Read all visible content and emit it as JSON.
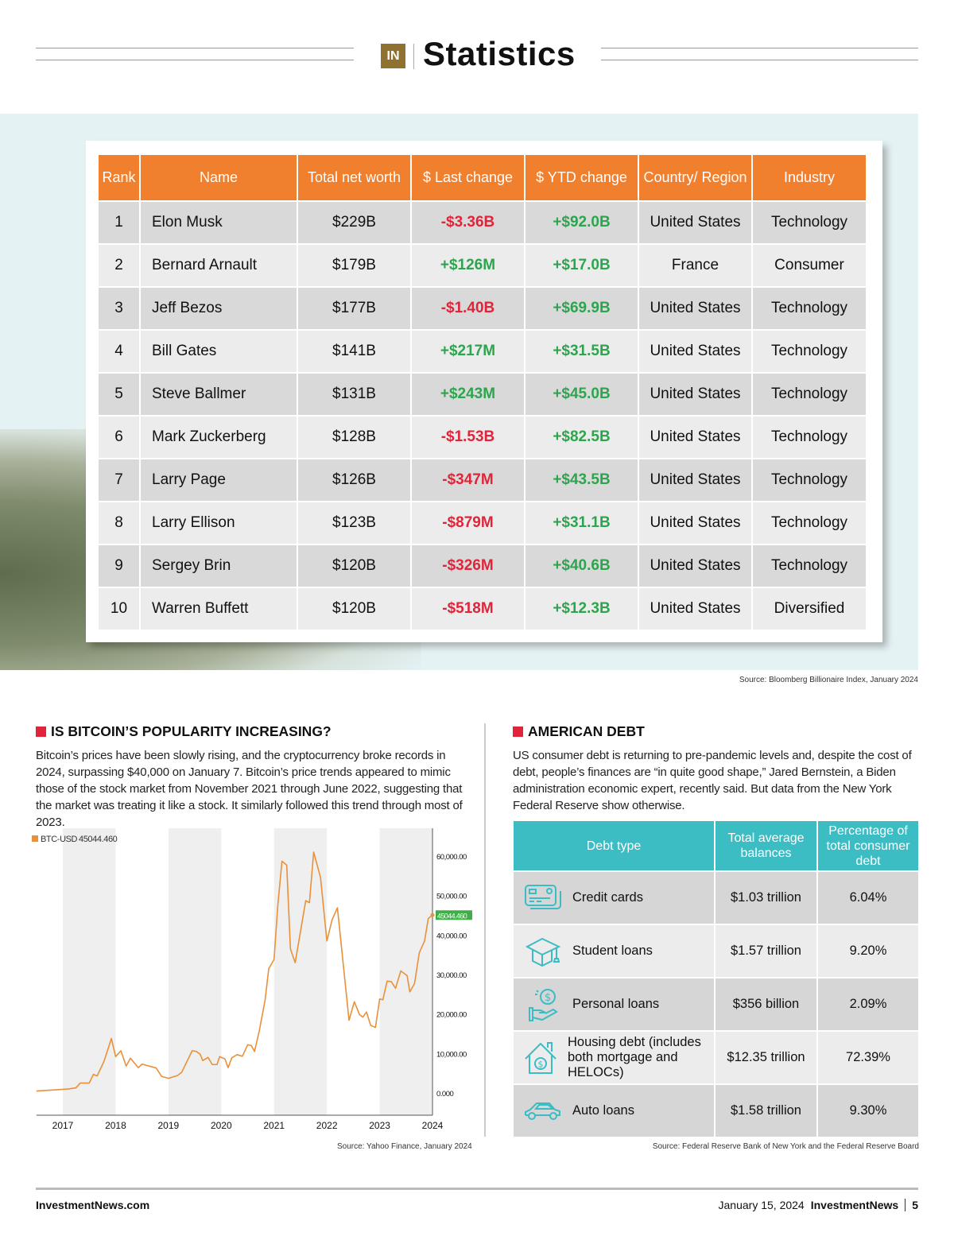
{
  "header": {
    "logo": "IN",
    "title": "Statistics"
  },
  "billionaires": {
    "columns": [
      "Rank",
      "Name",
      "Total net worth",
      "$ Last change",
      "$ YTD change",
      "Country/ Region",
      "Industry"
    ],
    "rows": [
      {
        "rank": "1",
        "name": "Elon Musk",
        "worth": "$229B",
        "last": "-$3.36B",
        "ytd": "+$92.0B",
        "country": "United States",
        "industry": "Technology"
      },
      {
        "rank": "2",
        "name": "Bernard Arnault",
        "worth": "$179B",
        "last": "+$126M",
        "ytd": "+$17.0B",
        "country": "France",
        "industry": "Consumer"
      },
      {
        "rank": "3",
        "name": "Jeff Bezos",
        "worth": "$177B",
        "last": "-$1.40B",
        "ytd": "+$69.9B",
        "country": "United States",
        "industry": "Technology"
      },
      {
        "rank": "4",
        "name": "Bill Gates",
        "worth": "$141B",
        "last": "+$217M",
        "ytd": "+$31.5B",
        "country": "United States",
        "industry": "Technology"
      },
      {
        "rank": "5",
        "name": "Steve Ballmer",
        "worth": "$131B",
        "last": "+$243M",
        "ytd": "+$45.0B",
        "country": "United States",
        "industry": "Technology"
      },
      {
        "rank": "6",
        "name": "Mark Zuckerberg",
        "worth": "$128B",
        "last": "-$1.53B",
        "ytd": "+$82.5B",
        "country": "United States",
        "industry": "Technology"
      },
      {
        "rank": "7",
        "name": "Larry Page",
        "worth": "$126B",
        "last": "-$347M",
        "ytd": "+$43.5B",
        "country": "United States",
        "industry": "Technology"
      },
      {
        "rank": "8",
        "name": "Larry Ellison",
        "worth": "$123B",
        "last": "-$879M",
        "ytd": "+$31.1B",
        "country": "United States",
        "industry": "Technology"
      },
      {
        "rank": "9",
        "name": "Sergey Brin",
        "worth": "$120B",
        "last": "-$326M",
        "ytd": "+$40.6B",
        "country": "United States",
        "industry": "Technology"
      },
      {
        "rank": "10",
        "name": "Warren Buffett",
        "worth": "$120B",
        "last": "-$518M",
        "ytd": "+$12.3B",
        "country": "United States",
        "industry": "Diversified"
      }
    ],
    "source": "Source: Bloomberg Billionaire Index, January 2024"
  },
  "bitcoin": {
    "heading": "IS BITCOIN’S POPULARITY INCREASING?",
    "body": "Bitcoin’s prices have been slowly rising, and the cryptocurrency broke records in 2024, surpassing $40,000 on January 7. Bitcoin’s price trends appeared to mimic those of the stock market from November 2021 through June 2022, suggesting that the market was treating it like a stock. It similarly followed this trend through most of 2023.",
    "source": "Source: Yahoo Finance, January 2024"
  },
  "chart_data": {
    "type": "line",
    "title": "",
    "legend": {
      "label": "BTC-USD",
      "value": "45044.460",
      "placement": "top-left"
    },
    "last_value_label": "45044.460",
    "xlabel": "",
    "ylabel": "",
    "x_ticks": [
      "2017",
      "2018",
      "2019",
      "2020",
      "2021",
      "2022",
      "2023",
      "2024"
    ],
    "y_ticks": [
      "0.000",
      "10,000.00",
      "20,000.00",
      "30,000.00",
      "40,000.00",
      "50,000.00",
      "60,000.00"
    ],
    "ylim": [
      -5000,
      66000
    ],
    "xlim": [
      2016.5,
      2024.0
    ],
    "series": [
      {
        "name": "BTC-USD",
        "color": "#e8913a",
        "x": [
          2016.5,
          2017.1,
          2017.25,
          2017.33,
          2017.5,
          2017.58,
          2017.65,
          2017.78,
          2017.92,
          2018.0,
          2018.1,
          2018.2,
          2018.28,
          2018.43,
          2018.5,
          2018.77,
          2018.87,
          2019.0,
          2019.17,
          2019.25,
          2019.45,
          2019.53,
          2019.6,
          2019.65,
          2019.75,
          2019.83,
          2019.92,
          2019.97,
          2020.07,
          2020.13,
          2020.2,
          2020.3,
          2020.4,
          2020.5,
          2020.57,
          2020.63,
          2020.72,
          2020.83,
          2020.9,
          2021.0,
          2021.07,
          2021.15,
          2021.24,
          2021.31,
          2021.4,
          2021.6,
          2021.67,
          2021.75,
          2021.88,
          2022.0,
          2022.1,
          2022.2,
          2022.42,
          2022.52,
          2022.62,
          2022.68,
          2022.75,
          2022.83,
          2022.92,
          2023.0,
          2023.06,
          2023.14,
          2023.22,
          2023.3,
          2023.4,
          2023.52,
          2023.57,
          2023.66,
          2023.75,
          2023.85,
          2023.92,
          2024.0
        ],
        "values": [
          500,
          1000,
          1300,
          2500,
          2500,
          4700,
          4300,
          8000,
          13800,
          9200,
          10700,
          6800,
          8800,
          6400,
          7300,
          6300,
          4200,
          3700,
          4400,
          5200,
          10700,
          10500,
          9800,
          8200,
          9000,
          7200,
          7200,
          9200,
          8600,
          6400,
          8900,
          9700,
          9300,
          12200,
          12000,
          10500,
          15700,
          23500,
          31500,
          33800,
          47300,
          58700,
          57700,
          36500,
          33000,
          48700,
          48200,
          61000,
          54600,
          38500,
          43900,
          46900,
          18400,
          23100,
          19800,
          19200,
          20500,
          17100,
          16600,
          23800,
          23600,
          28300,
          28200,
          26500,
          30900,
          29700,
          25600,
          27700,
          35500,
          38500,
          44200,
          45044
        ]
      }
    ],
    "shaded_bands": [
      [
        2017,
        2018
      ],
      [
        2019,
        2020
      ],
      [
        2021,
        2022
      ],
      [
        2023,
        2024
      ]
    ],
    "grid": false
  },
  "debt": {
    "heading": "AMERICAN DEBT",
    "body": "US consumer debt is returning to pre-pandemic levels and, despite the cost of debt, people’s finances are “in quite good shape,” Jared Bernstein, a Biden administration economic expert, recently said. But data from the New York Federal Reserve show otherwise.",
    "columns": [
      "Debt type",
      "Total average balances",
      "Percentage of total consumer debt"
    ],
    "rows": [
      {
        "icon": "credit-card-icon",
        "type": "Credit cards",
        "balance": "$1.03 trillion",
        "pct": "6.04%"
      },
      {
        "icon": "graduation-cap-icon",
        "type": "Student loans",
        "balance": "$1.57 trillion",
        "pct": "9.20%"
      },
      {
        "icon": "hand-money-icon",
        "type": "Personal loans",
        "balance": "$356 billion",
        "pct": "2.09%"
      },
      {
        "icon": "house-dollar-icon",
        "type": "Housing debt (includes both mortgage and HELOCs)",
        "balance": "$12.35 trillion",
        "pct": "72.39%"
      },
      {
        "icon": "car-icon",
        "type": "Auto loans",
        "balance": "$1.58 trillion",
        "pct": "9.30%"
      }
    ],
    "source": "Source: Federal Reserve Bank of New York and the Federal Reserve Board"
  },
  "footer": {
    "site": "InvestmentNews.com",
    "date": "January 15, 2024",
    "brand": "InvestmentNews",
    "page": "5"
  },
  "colors": {
    "orange": "#f07f2e",
    "red": "#e0243a",
    "green": "#2da44e",
    "teal": "#3cbcc3",
    "gold": "#8f7230"
  }
}
